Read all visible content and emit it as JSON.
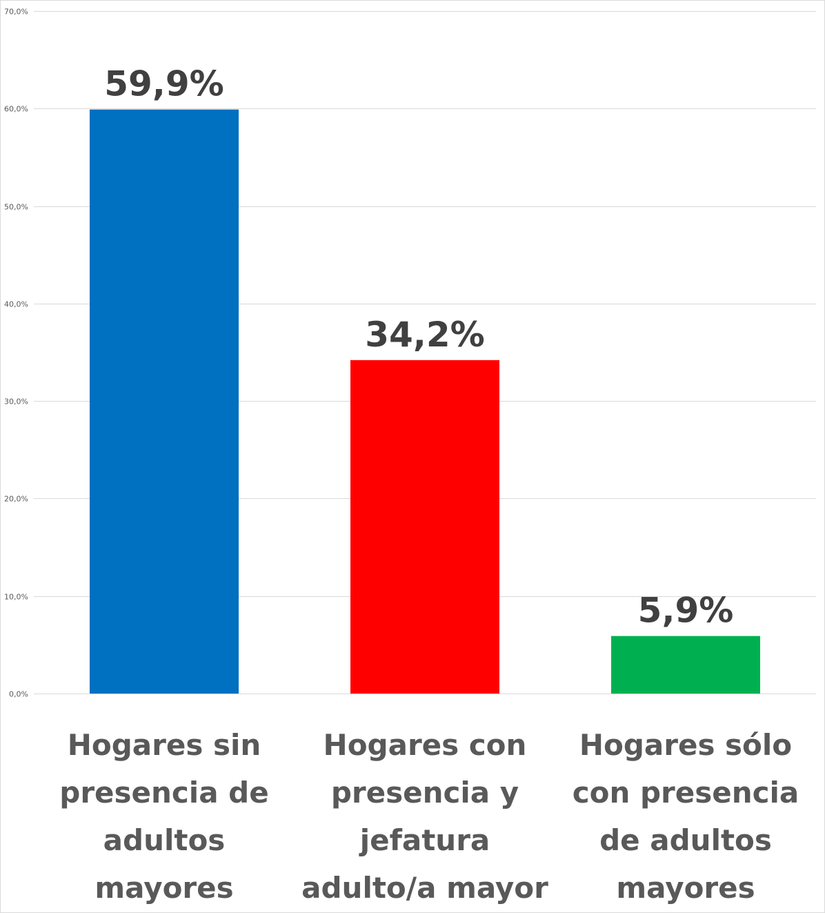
{
  "chart_data": {
    "type": "bar",
    "categories": [
      [
        "Hogares sin",
        "presencia de",
        "adultos",
        "mayores"
      ],
      [
        "Hogares con",
        "presencia y",
        "jefatura",
        "adulto/a mayor"
      ],
      [
        "Hogares sólo",
        "con presencia",
        "de adultos",
        "mayores"
      ]
    ],
    "values": [
      59.9,
      34.2,
      5.9
    ],
    "data_labels": [
      "59,9%",
      "34,2%",
      "5,9%"
    ],
    "colors": [
      "#0070C0",
      "#FF0000",
      "#00B050"
    ],
    "y_ticks": [
      0,
      10,
      20,
      30,
      40,
      50,
      60,
      70
    ],
    "y_tick_labels": [
      "0,0%",
      "10,0%",
      "20,0%",
      "30,0%",
      "40,0%",
      "50,0%",
      "60,0%",
      "70,0%"
    ],
    "ylim": [
      0,
      70
    ],
    "grid": true,
    "legend": "none",
    "title": "",
    "xlabel": "",
    "ylabel": ""
  }
}
